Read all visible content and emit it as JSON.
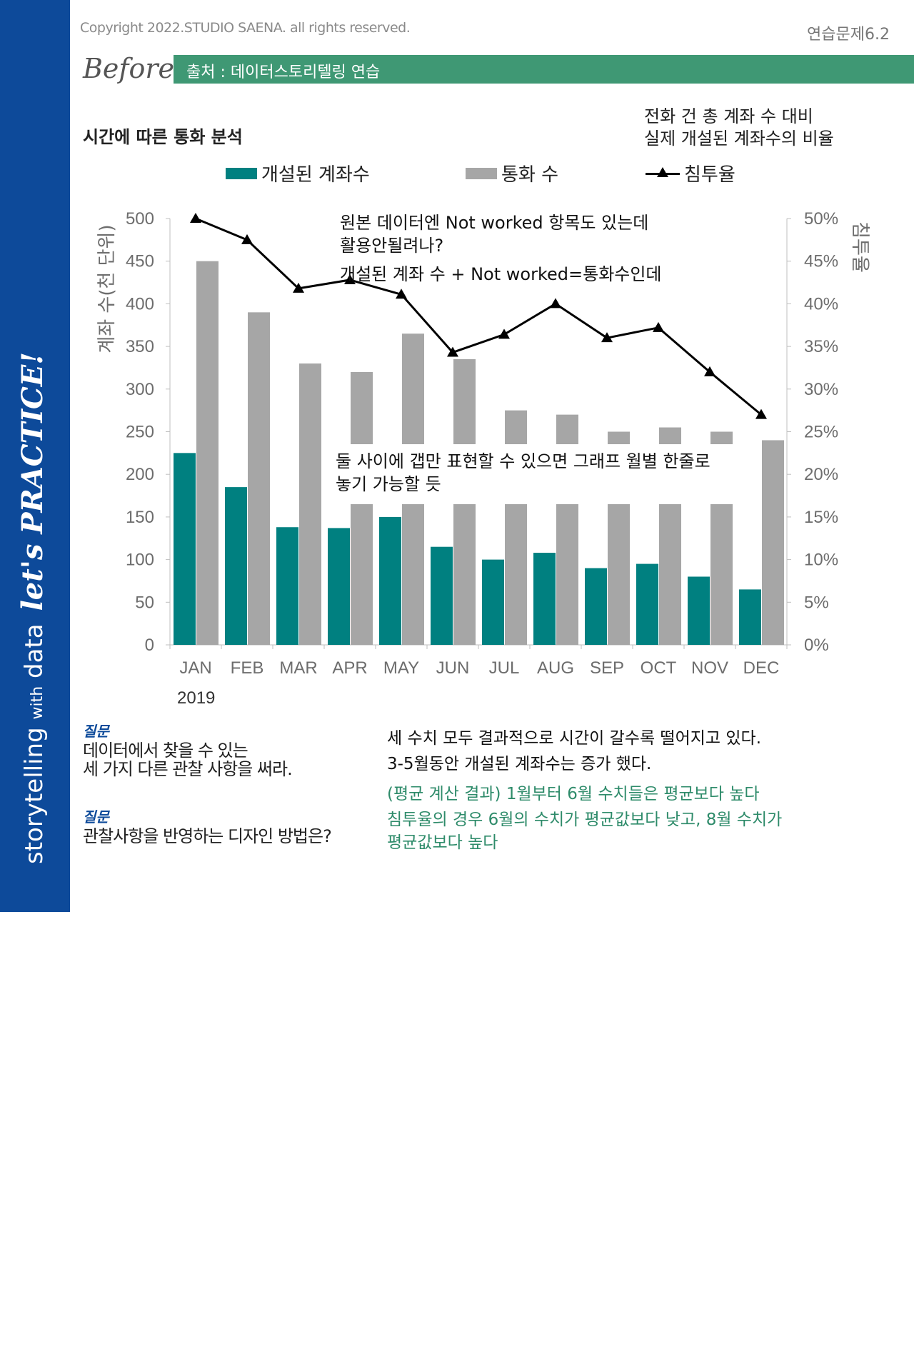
{
  "header": {
    "copyright": "Copyright 2022.STUDIO SAENA. all rights reserved.",
    "problem": "연습문제6.2",
    "before": "Before",
    "source": "출처 : 데이터스토리텔링 연습"
  },
  "sidebar": {
    "text_a": "storytelling",
    "text_with": "with",
    "text_data": "data",
    "text_b": "let's PRACTICE!"
  },
  "colors": {
    "sidebar": "#0d4a9a",
    "accent_green": "#3f9874",
    "teal": "#008080",
    "gray": "#a6a6a6",
    "answer_green": "#2e8b6a"
  },
  "notes": {
    "top_right": [
      "전화 건 총 계좌 수 대비",
      "실제 개설된 계좌수의 비율"
    ],
    "note1": [
      "원본 데이터엔 Not worked 항목도 있는데",
      "활용안될려나?"
    ],
    "note2": "개설된 계좌 수 + Not worked=통화수인데",
    "note3": [
      "둘 사이에 갭만 표현할 수 있으면 그래프 월별 한줄로",
      "놓기 가능할 듯"
    ]
  },
  "questions": {
    "q1_label": "질문",
    "q1_text": [
      "데이터에서 찾을 수 있는",
      "세 가지 다른 관찰 사항을 써라."
    ],
    "q2_label": "질문",
    "q2_text": "관찰사항을 반영하는 디자인 방법은?"
  },
  "answers": {
    "black": [
      "세 수치 모두 결과적으로 시간이 갈수록 떨어지고 있다.",
      "3-5월동안 개설된 계좌수는 증가 했다."
    ],
    "green": [
      "(평균 계산 결과) 1월부터 6월 수치들은 평균보다 높다",
      "침투율의 경우 6월의 수치가 평균값보다 낮고, 8월 수치가",
      "평균값보다 높다"
    ]
  },
  "chart_data": {
    "type": "bar",
    "title": "시간에 따른 통화 분석",
    "categories": [
      "JAN",
      "FEB",
      "MAR",
      "APR",
      "MAY",
      "JUN",
      "JUL",
      "AUG",
      "SEP",
      "OCT",
      "NOV",
      "DEC"
    ],
    "year_label": "2019",
    "series": [
      {
        "name": "개설된 계좌수",
        "type": "bar",
        "axis": "left",
        "color": "#008080",
        "values": [
          225,
          185,
          138,
          137,
          150,
          115,
          100,
          108,
          90,
          95,
          80,
          65
        ]
      },
      {
        "name": "통화 수",
        "type": "bar",
        "axis": "left",
        "color": "#a6a6a6",
        "values": [
          450,
          390,
          330,
          320,
          365,
          335,
          275,
          270,
          250,
          255,
          250,
          240
        ]
      },
      {
        "name": "침투율",
        "type": "line",
        "axis": "right",
        "color": "#000000",
        "values": [
          0.5,
          0.475,
          0.418,
          0.428,
          0.411,
          0.343,
          0.364,
          0.4,
          0.36,
          0.372,
          0.32,
          0.27
        ]
      }
    ],
    "ylabel": "계좌 수(천 단위)",
    "ylabel_right": "침투율",
    "ylim": [
      0,
      500
    ],
    "ylim_right": [
      0,
      0.5
    ],
    "yticks": [
      "0",
      "50",
      "100",
      "150",
      "200",
      "250",
      "300",
      "350",
      "400",
      "450",
      "500"
    ],
    "yticks_right": [
      "0%",
      "5%",
      "10%",
      "15%",
      "20%",
      "25%",
      "30%",
      "35%",
      "40%",
      "45%",
      "50%"
    ],
    "legend": "top"
  }
}
